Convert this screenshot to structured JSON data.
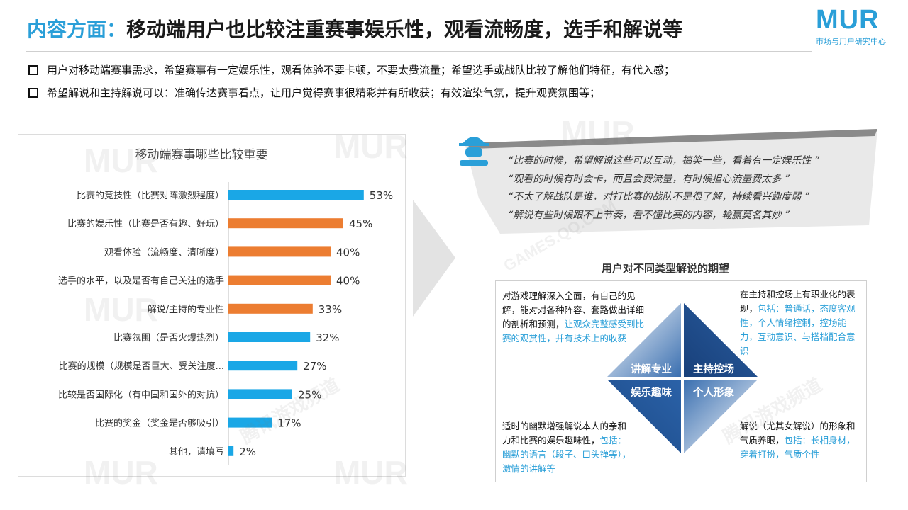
{
  "header": {
    "title_highlight": "内容方面：",
    "title_main": "移动端用户也比较注重赛事娱乐性，观看流畅度，选手和解说等",
    "logo_text": "MUR",
    "logo_sub": "市场与用户研究中心"
  },
  "bullets": [
    "用户对移动端赛事需求，希望赛事有一定娱乐性，观看体验不要卡顿，不要太费流量；希望选手或战队比较了解他们特征，有代入感；",
    "希望解说和主持解说可以：准确传达赛事看点，让用户觉得赛事很精彩并有所收获；有效渲染气氛，提升观赛氛围等；"
  ],
  "chart_data": {
    "type": "bar",
    "orientation": "horizontal",
    "title": "移动端赛事哪些比较重要",
    "categories": [
      "比赛的竞技性（比赛对阵激烈程度）",
      "比赛的娱乐性（比赛是否有趣、好玩）",
      "观看体验（流畅度、清晰度）",
      "选手的水平，以及是否有自己关注的选手",
      "解说/主持的专业性",
      "比赛氛围（是否火爆热烈）",
      "比赛的规模（规模是否巨大、受关注度...",
      "比较是否国际化（有中国和国外的对抗）",
      "比赛的奖金（奖金是否够吸引）",
      "其他，请填写"
    ],
    "values": [
      53,
      45,
      40,
      40,
      33,
      32,
      27,
      25,
      17,
      2
    ],
    "value_labels": [
      "53%",
      "45%",
      "40%",
      "40%",
      "33%",
      "32%",
      "27%",
      "25%",
      "17%",
      "2%"
    ],
    "bar_colors": [
      "#1aa7e6",
      "#ec7d31",
      "#ec7d31",
      "#ec7d31",
      "#ec7d31",
      "#1aa7e6",
      "#1aa7e6",
      "#1aa7e6",
      "#1aa7e6",
      "#1aa7e6"
    ],
    "xlim": [
      0,
      60
    ],
    "grid": false,
    "legend": "none"
  },
  "quotes": [
    "“比赛的时候，希望解说这些可以互动，搞笑一些，看着有一定娱乐性 ”",
    "“观看的时候有时会卡，而且会费流量，有时候担心流量费太多 ”",
    "“不太了解战队是谁，对打比赛的战队不是很了解，持续看兴趣度弱 ”",
    "“解说有些时候跟不上节奏，看不懂比赛的内容，输赢莫名其妙 ”"
  ],
  "expectations": {
    "title": "用户对不同类型解说的期望",
    "quadrants": [
      "讲解专业",
      "主持控场",
      "娱乐趣味",
      "个人形象"
    ],
    "top_left": {
      "plain": "对游戏理解深入全面，有自己的见解，能对对各种阵容、套路做出详细的剖析和预测，",
      "blue": "让观众完整感受到比赛的观赏性，并有技术上的收获"
    },
    "top_right": {
      "plain": "在主持和控场上有职业化的表现，",
      "blue": "包括：普通话，态度客观性，个人情绪控制，控场能力，互动意识、与搭档配合意识"
    },
    "bottom_left": {
      "plain": "适时的幽默增强解说本人的亲和力和比赛的娱乐趣味性，",
      "blue": "包括：幽默的语言（段子、口头禅等），激情的讲解等"
    },
    "bottom_right": {
      "plain": "解说（尤其女解说）的形象和气质养眼，",
      "blue": "包括：长相身材，穿着打扮，气质个性"
    }
  },
  "colors": {
    "accent": "#2a9fd8",
    "bar_blue": "#1aa7e6",
    "bar_orange": "#ec7d31",
    "diamond_dark": "#1f4e8a",
    "diamond_light": "#a9bde0"
  },
  "watermark": {
    "brand": "MUR",
    "sub": "市场与用户研究中心",
    "channel": "腾讯游戏频道",
    "url": "GAMES.QQ.COM"
  }
}
